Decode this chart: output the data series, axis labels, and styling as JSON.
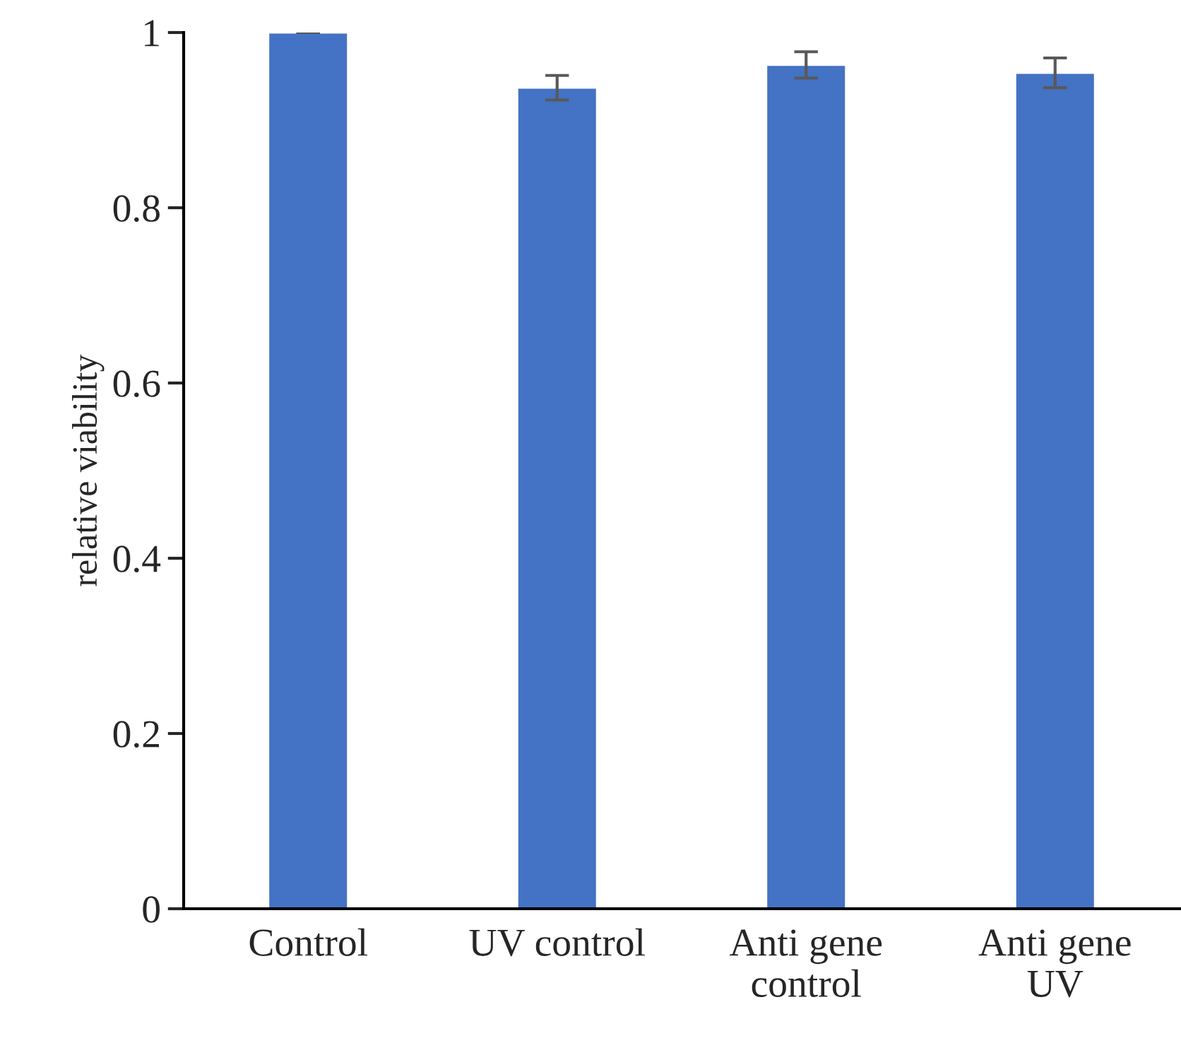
{
  "chart_data": {
    "type": "bar",
    "ylabel": "relative viability",
    "categories": [
      "Control",
      "UV control",
      "Anti gene\ncontrol",
      "Anti gene\nUV"
    ],
    "values": [
      1.0,
      0.937,
      0.963,
      0.954
    ],
    "errors": [
      0,
      0.014,
      0.015,
      0.017
    ],
    "color": "#4472c4",
    "ylim": [
      0,
      1
    ],
    "yticks": [
      0,
      0.2,
      0.4,
      0.6,
      0.8,
      1
    ],
    "grid": false,
    "legend": false
  }
}
